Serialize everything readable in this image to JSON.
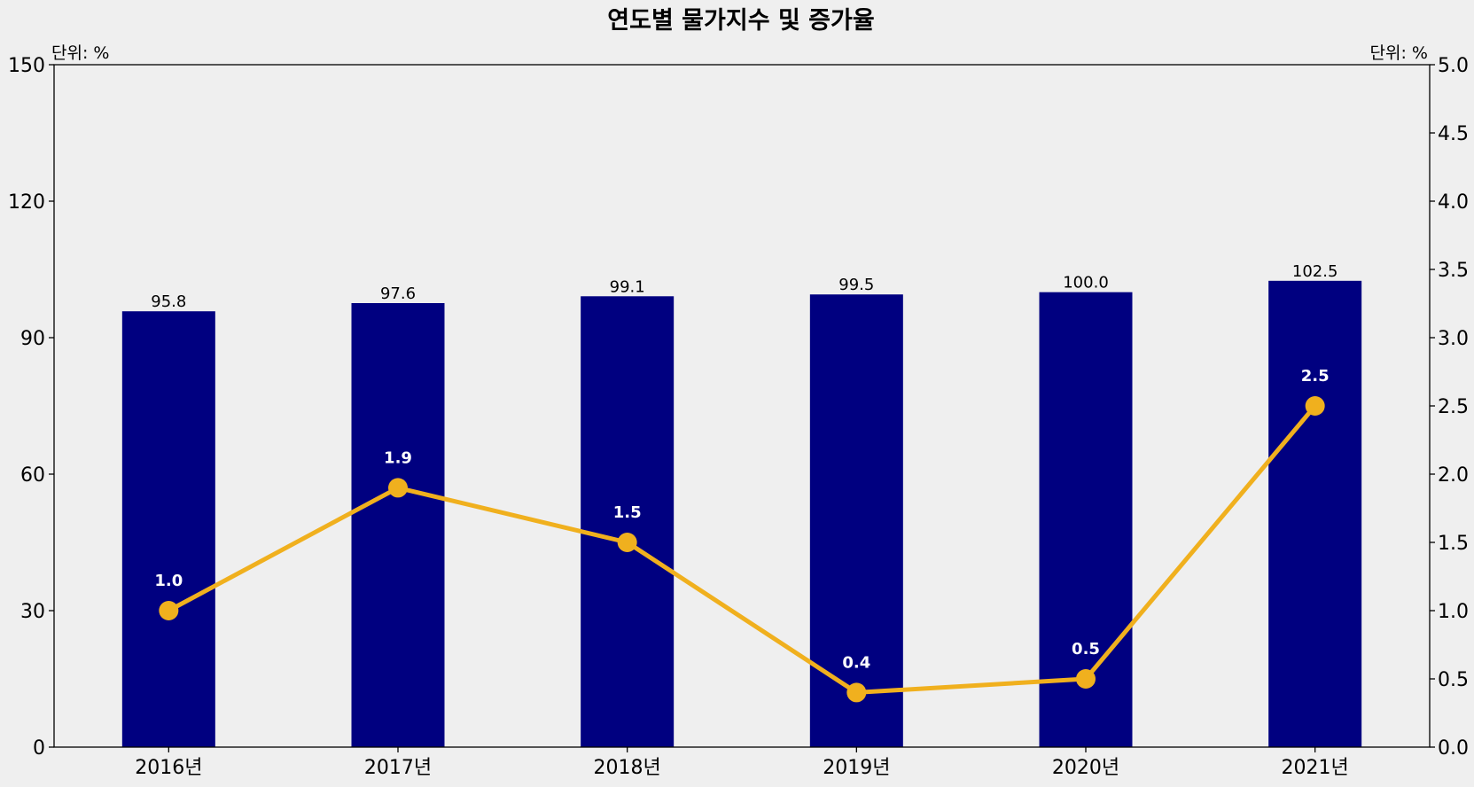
{
  "chart_data": {
    "type": "bar",
    "title": "연도별 물가지수 및 증가율",
    "categories": [
      "2016년",
      "2017년",
      "2018년",
      "2019년",
      "2020년",
      "2021년"
    ],
    "series": [
      {
        "type": "bar",
        "values": [
          95.8,
          97.6,
          99.1,
          99.5,
          100.0,
          102.5
        ],
        "value_labels": [
          "95.8",
          "97.6",
          "99.1",
          "99.5",
          "100.0",
          "102.5"
        ],
        "color": "#000080",
        "axis": "left"
      },
      {
        "type": "line",
        "values": [
          1.0,
          1.9,
          1.5,
          0.4,
          0.5,
          2.5
        ],
        "value_labels": [
          "1.0",
          "1.9",
          "1.5",
          "0.4",
          "0.5",
          "2.5"
        ],
        "color": "#f0b01e",
        "axis": "right"
      }
    ],
    "y_left": {
      "unit_label": "단위: %",
      "ylim": [
        0,
        150
      ],
      "ticks": [
        0,
        30,
        60,
        90,
        120,
        150
      ],
      "tick_labels": [
        "0",
        "30",
        "60",
        "90",
        "120",
        "150"
      ]
    },
    "y_right": {
      "unit_label": "단위: %",
      "ylim": [
        0,
        5.0
      ],
      "ticks": [
        0,
        0.5,
        1.0,
        1.5,
        2.0,
        2.5,
        3.0,
        3.5,
        4.0,
        4.5,
        5.0
      ],
      "tick_labels": [
        "0.0",
        "0.5",
        "1.0",
        "1.5",
        "2.0",
        "2.5",
        "3.0",
        "3.5",
        "4.0",
        "4.5",
        "5.0"
      ]
    },
    "grid": false,
    "background": "#efefef"
  }
}
